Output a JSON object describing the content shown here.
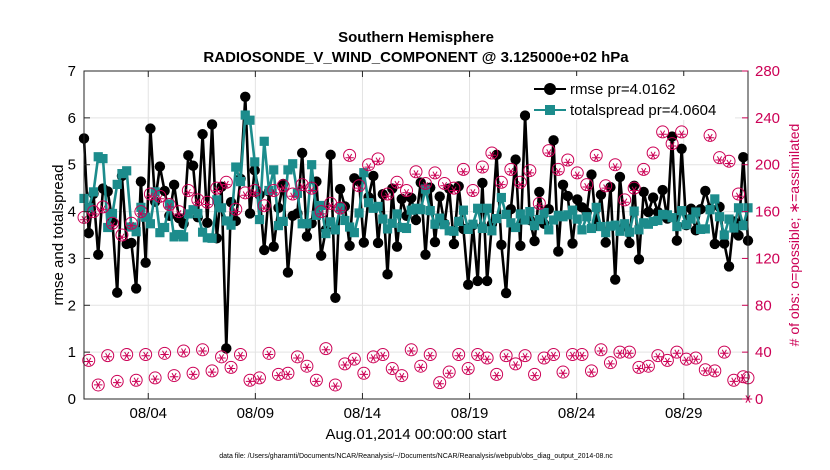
{
  "chart_data": {
    "type": "line",
    "title": "Southern Hemisphere",
    "subtitle": "RADIOSONDE_V_WIND_COMPONENT @ 3.125000e+02 hPa",
    "xlabel": "Aug.01,2014 00:00:00 start",
    "ylabel": "rmse and totalspread",
    "y2label": "# of obs: o=possible; ∗=assimilated",
    "footnote": "data file: /Users/gharamti/Documents/NCAR/Reanalysis/~/Documents/NCAR/Reanalysis/webpub/obs_diag_output_2014-08.nc",
    "xlim": [
      1,
      32
    ],
    "ylim": [
      0,
      7
    ],
    "y2lim": [
      0,
      280
    ],
    "x_ticks": [
      4,
      9,
      14,
      19,
      24,
      29
    ],
    "x_tick_labels": [
      "08/04",
      "08/09",
      "08/14",
      "08/19",
      "08/24",
      "08/29"
    ],
    "y_ticks": [
      0,
      1,
      2,
      3,
      4,
      5,
      6,
      7
    ],
    "y_tick_labels": [
      "0",
      "1",
      "2",
      "3",
      "4",
      "5",
      "6",
      "7"
    ],
    "y2_ticks": [
      0,
      40,
      80,
      120,
      160,
      200,
      240,
      280
    ],
    "y2_tick_labels": [
      "0",
      "40",
      "80",
      "120",
      "160",
      "200",
      "240",
      "280"
    ],
    "grid": true,
    "legend_position": "top-right",
    "series": [
      {
        "name": "rmse",
        "legend": "rmse pr=4.0162",
        "color": "#000000",
        "marker": "circle",
        "axis": "left",
        "values": [
          5.56,
          3.54,
          4.38,
          3.08,
          4.49,
          4.43,
          3.78,
          2.27,
          4.76,
          3.31,
          3.33,
          2.36,
          4.64,
          2.91,
          5.77,
          4.21,
          4.96,
          4.44,
          3.91,
          4.57,
          3.86,
          3.74,
          5.2,
          4.98,
          3.88,
          5.65,
          3.76,
          5.86,
          3.43,
          4.53,
          1.08,
          4.2,
          3.8,
          4.7,
          6.45,
          3.96,
          4.88,
          4.36,
          3.18,
          4.43,
          3.25,
          4.08,
          4.59,
          2.7,
          3.91,
          3.96,
          5.25,
          3.47,
          3.75,
          4.64,
          3.06,
          3.61,
          5.21,
          2.16,
          4.48,
          4.11,
          3.27,
          4.71,
          4.64,
          3.34,
          4.31,
          4.76,
          3.33,
          4.37,
          2.66,
          4.49,
          3.25,
          4.27,
          3.91,
          4.29,
          3.82,
          4.62,
          3.08,
          4.51,
          3.35,
          4.32,
          3.74,
          4.49,
          3.31,
          4.54,
          3.63,
          2.44,
          3.71,
          2.52,
          4.61,
          2.52,
          3.73,
          5.21,
          3.29,
          2.26,
          4.05,
          5.11,
          3.27,
          6.05,
          3.82,
          3.37,
          4.42,
          3.74,
          4.05,
          5.52,
          3.15,
          4.57,
          4.33,
          3.32,
          4.26,
          4.09,
          3.98,
          4.79,
          3.7,
          4.36,
          3.34,
          4.52,
          2.55,
          4.74,
          3.69,
          3.33,
          4.55,
          2.98,
          4.42,
          3.99,
          4.3,
          3.99,
          4.46,
          3.85,
          5.6,
          3.38,
          5.34,
          3.71,
          4.06,
          3.6,
          4.05,
          4.44,
          4.06,
          3.31,
          4.1,
          3.32,
          2.83,
          3.79,
          3.49,
          5.16,
          3.38
        ]
      },
      {
        "name": "totalspread",
        "legend": "totalspread pr=4.0604",
        "color": "#1c8c8c",
        "marker": "square",
        "axis": "left",
        "values": [
          4.28,
          4.08,
          4.42,
          5.17,
          5.13,
          3.66,
          3.96,
          4.58,
          4.81,
          4.87,
          3.67,
          3.57,
          4.09,
          3.88,
          3.74,
          4.42,
          3.55,
          3.66,
          4.16,
          3.46,
          3.51,
          3.46,
          3.95,
          4.04,
          3.96,
          3.56,
          3.44,
          3.43,
          4.25,
          4.08,
          3.8,
          3.71,
          4.95,
          4.64,
          6.06,
          5.95,
          5.06,
          3.83,
          5.5,
          4.45,
          4.89,
          3.7,
          3.79,
          4.89,
          5.02,
          4.39,
          3.74,
          3.74,
          5.0,
          3.92,
          4.13,
          3.53,
          3.78,
          3.61,
          4.08,
          3.81,
          3.67,
          3.55,
          3.97,
          4.83,
          4.19,
          4.07,
          4.11,
          3.84,
          3.63,
          3.75,
          3.95,
          3.66,
          3.64,
          4.03,
          4.07,
          4.04,
          4.48,
          4.02,
          3.73,
          3.86,
          3.72,
          3.59,
          3.58,
          3.79,
          4.03,
          3.62,
          3.73,
          4.07,
          3.64,
          4.07,
          3.59,
          3.85,
          4.3,
          3.94,
          3.76,
          3.66,
          3.95,
          3.82,
          4.0,
          3.7,
          3.83,
          3.98,
          3.61,
          3.82,
          3.92,
          3.89,
          3.93,
          4.03,
          3.84,
          3.61,
          3.89,
          3.64,
          4.09,
          3.68,
          3.55,
          3.69,
          3.71,
          3.58,
          3.74,
          3.56,
          4.01,
          3.61,
          3.76,
          3.73,
          3.79,
          3.81,
          3.94,
          3.93,
          3.87,
          3.68,
          4.02,
          3.72,
          3.84,
          3.99,
          3.62,
          3.63,
          4.04,
          4.27,
          3.89,
          3.5,
          3.84,
          3.65,
          4.08,
          3.7,
          4.08
        ]
      },
      {
        "name": "possible",
        "legend": "o=possible",
        "color": "#cc0055",
        "marker": "circle-open",
        "axis": "right",
        "values": [
          155,
          33,
          160,
          12,
          164,
          37,
          150,
          15,
          140,
          38,
          150,
          16,
          160,
          38,
          175,
          18,
          173,
          39,
          166,
          20,
          160,
          41,
          178,
          22,
          170,
          42,
          168,
          24,
          180,
          36,
          185,
          27,
          162,
          38,
          176,
          16,
          178,
          18,
          165,
          39,
          178,
          21,
          182,
          22,
          175,
          36,
          183,
          28,
          180,
          16,
          160,
          43,
          167,
          12,
          163,
          30,
          208,
          34,
          182,
          22,
          200,
          36,
          205,
          38,
          175,
          26,
          185,
          20,
          178,
          42,
          194,
          28,
          184,
          38,
          193,
          14,
          184,
          23,
          180,
          38,
          196,
          26,
          178,
          38,
          198,
          35,
          210,
          21,
          185,
          37,
          196,
          30,
          185,
          37,
          195,
          21,
          167,
          35,
          212,
          38,
          196,
          23,
          204,
          38,
          193,
          38,
          183,
          24,
          208,
          42,
          182,
          31,
          200,
          40,
          170,
          40,
          180,
          27,
          196,
          28,
          210,
          37,
          228,
          33,
          218,
          40,
          228,
          34,
          245,
          35,
          257,
          25,
          225,
          24,
          206,
          40,
          203,
          16,
          175,
          19,
          18
        ]
      },
      {
        "name": "assimilated",
        "legend": "∗=assimilated",
        "color": "#cc0055",
        "marker": "star",
        "axis": "right",
        "values": [
          153,
          32,
          158,
          12,
          162,
          36,
          148,
          14,
          138,
          37,
          148,
          15,
          158,
          37,
          173,
          17,
          171,
          38,
          164,
          19,
          158,
          40,
          176,
          21,
          168,
          41,
          166,
          23,
          178,
          35,
          183,
          26,
          160,
          37,
          174,
          15,
          176,
          17,
          163,
          38,
          176,
          20,
          180,
          21,
          173,
          35,
          181,
          27,
          178,
          15,
          158,
          42,
          165,
          11,
          161,
          29,
          206,
          33,
          180,
          21,
          198,
          35,
          203,
          37,
          173,
          25,
          183,
          19,
          176,
          41,
          192,
          27,
          182,
          37,
          191,
          13,
          182,
          22,
          178,
          37,
          194,
          25,
          176,
          37,
          196,
          34,
          208,
          20,
          183,
          36,
          194,
          29,
          183,
          36,
          193,
          20,
          165,
          34,
          210,
          37,
          194,
          22,
          202,
          37,
          191,
          37,
          181,
          23,
          206,
          41,
          180,
          30,
          198,
          39,
          168,
          39,
          178,
          26,
          194,
          27,
          208,
          36,
          226,
          32,
          216,
          39,
          226,
          33,
          243,
          34,
          255,
          24,
          223,
          23,
          204,
          39,
          201,
          15,
          173,
          18,
          0
        ]
      }
    ]
  }
}
